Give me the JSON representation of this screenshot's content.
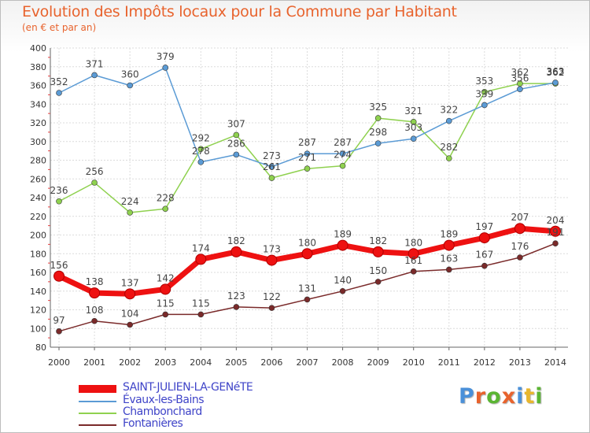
{
  "title": "Evolution des Impôts locaux pour la Commune par Habitant",
  "subtitle": "(en € et par an)",
  "logo": {
    "text": "Proxiti",
    "colors": [
      "#4a90d9",
      "#e8632d",
      "#5bb533",
      "#e8632d",
      "#4a90d9",
      "#e8b62d",
      "#5bb533"
    ]
  },
  "chart_data": {
    "type": "line",
    "x": [
      "2000",
      "2001",
      "2002",
      "2003",
      "2004",
      "2005",
      "2006",
      "2007",
      "2008",
      "2009",
      "2010",
      "2011",
      "2012",
      "2013",
      "2014"
    ],
    "ylim": [
      80,
      400
    ],
    "yticks": [
      "80",
      "100",
      "120",
      "140",
      "160",
      "180",
      "200",
      "220",
      "240",
      "260",
      "280",
      "300",
      "320",
      "340",
      "360",
      "380",
      "400"
    ],
    "grid": true,
    "legend_position": "bottom-left",
    "series": [
      {
        "name": "SAINT-JULIEN-LA-GENéTE",
        "color": "#ee1111",
        "values": [
          156,
          138,
          137,
          142,
          174,
          182,
          173,
          180,
          189,
          182,
          180,
          189,
          197,
          207,
          204
        ]
      },
      {
        "name": "Évaux-les-Bains",
        "color": "#5b9bd5",
        "values": [
          352,
          371,
          360,
          379,
          278,
          286,
          273,
          287,
          287,
          298,
          303,
          322,
          339,
          356,
          363
        ]
      },
      {
        "name": "Chambonchard",
        "color": "#8fd14f",
        "values": [
          236,
          256,
          224,
          228,
          292,
          307,
          261,
          271,
          274,
          325,
          321,
          282,
          353,
          362,
          362
        ]
      },
      {
        "name": "Fontanières",
        "color": "#7a2a2a",
        "values": [
          97,
          108,
          104,
          115,
          115,
          123,
          122,
          131,
          140,
          150,
          161,
          163,
          167,
          176,
          191
        ]
      }
    ],
    "data_labels": {
      "SAINT-JULIEN-LA-GENéTE": [
        "156",
        "138",
        "137",
        "142",
        "174",
        "182",
        "173",
        "180",
        "189",
        "182",
        "180",
        "189",
        "197",
        "207",
        "204"
      ],
      "Évaux-les-Bains": [
        "352",
        "371",
        "360",
        "379",
        "278",
        "286",
        "273",
        "287",
        "287",
        "298",
        "303",
        "322",
        "339",
        "356",
        "363"
      ],
      "Chambonchard": [
        "236",
        "256",
        "224",
        "228",
        "292",
        "307",
        "261",
        "271",
        "274",
        "325",
        "321",
        "282",
        "353",
        "362",
        "362"
      ],
      "Fontanières": [
        "97",
        "108",
        "104",
        "115",
        "115",
        "123",
        "122",
        "131",
        "140",
        "150",
        "161",
        "163",
        "167",
        "176",
        "191"
      ]
    }
  }
}
